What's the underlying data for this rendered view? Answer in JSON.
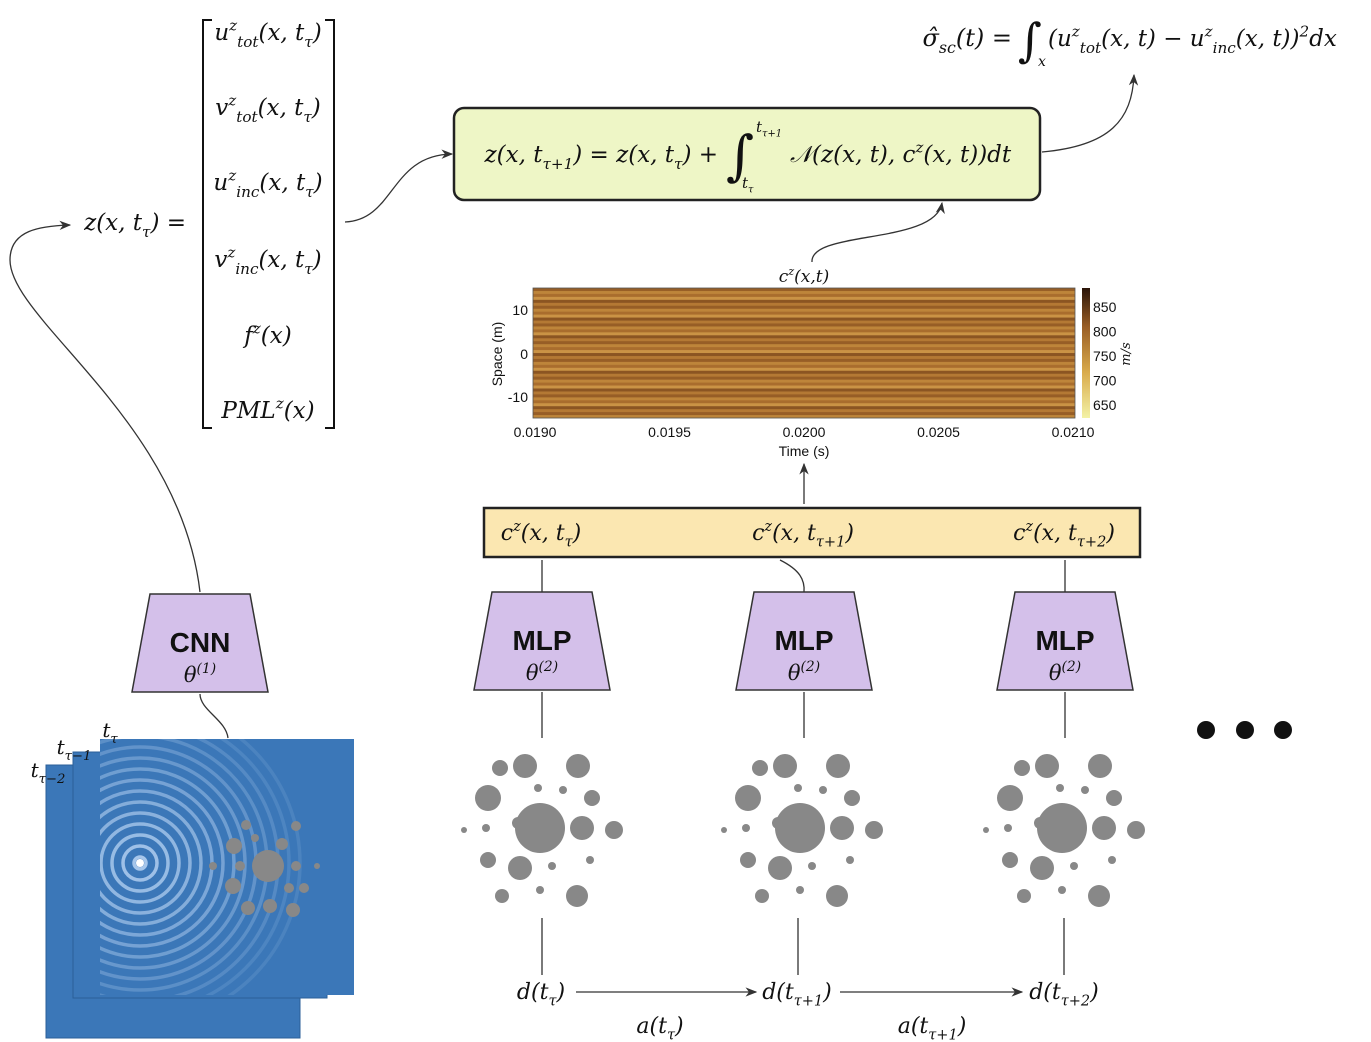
{
  "scattering_equation": {
    "lhs": "σ̂_{sc}(t) =",
    "integral": "∫",
    "lower": "x",
    "integrand": "(u^{z}_{tot}(x, t) − u^{z}_{inc}(x, t))^{2}dx"
  },
  "update_equation": {
    "lhs": "z(x, t_{τ+1}) = z(x, t_{τ}) +",
    "integral": "∫",
    "upper": "t_{τ+1}",
    "lower": "t_{τ}",
    "integrand": "𝒩(z(x, t), c^{z}(x, t))dt"
  },
  "state_label": "z(x, t_{τ}) =",
  "state_vector": [
    "u^{z}_{tot}(x, t_{τ})",
    "v^{z}_{tot}(x, t_{τ})",
    "u^{z}_{inc}(x, t_{τ})",
    "v^{z}_{inc}(x, t_{τ})",
    "f^{z}(x)",
    "PML^{z}(x)"
  ],
  "speed_label": "c^{z}(x,t)",
  "heatmap": {
    "y_label": "Space (m)",
    "x_label": "Time (s)",
    "colorbar_label": "m/s",
    "xticks": [
      "0.0190",
      "0.0195",
      "0.0200",
      "0.0205",
      "0.0210"
    ],
    "yticks": [
      "10",
      "0",
      "-10"
    ],
    "colorbar_ticks": [
      "850",
      "800",
      "750",
      "700",
      "650"
    ]
  },
  "speed_sequence": [
    "c^{z}(x, t_{τ})",
    "c^{z}(x, t_{τ+1})",
    "c^{z}(x, t_{τ+2})"
  ],
  "cnn": {
    "name": "CNN",
    "params": "θ^{(1)}"
  },
  "mlps": [
    {
      "name": "MLP",
      "params": "θ^{(2)}"
    },
    {
      "name": "MLP",
      "params": "θ^{(2)}"
    },
    {
      "name": "MLP",
      "params": "θ^{(2)}"
    }
  ],
  "frame_labels": [
    "t_{τ}",
    "t_{τ−1}",
    "t_{τ−2}"
  ],
  "designs": [
    "d(t_{τ})",
    "d(t_{τ+1})",
    "d(t_{τ+2})"
  ],
  "actions": [
    "a(t_{τ})",
    "a(t_{τ+1})"
  ]
}
